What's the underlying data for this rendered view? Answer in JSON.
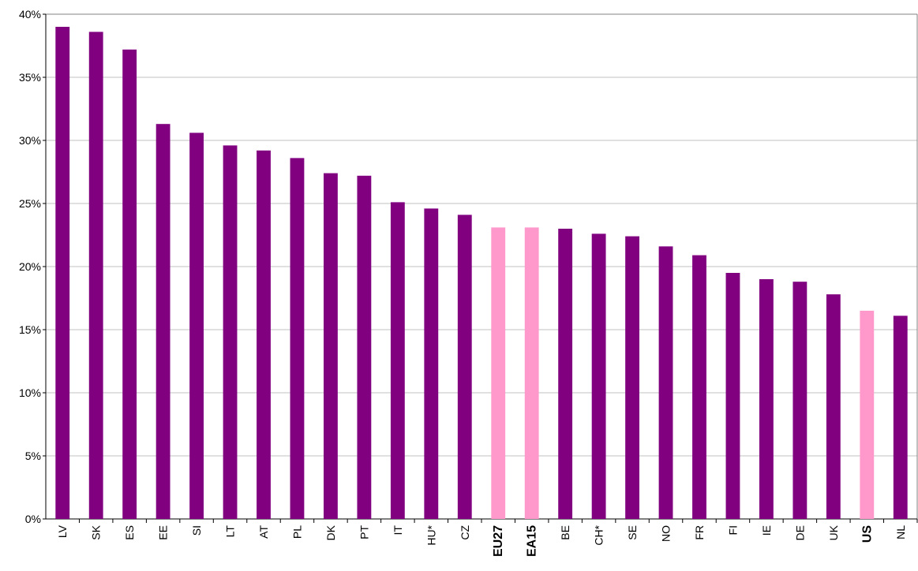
{
  "chart_data": {
    "type": "bar",
    "categories": [
      "LV",
      "SK",
      "ES",
      "EE",
      "SI",
      "LT",
      "AT",
      "PL",
      "DK",
      "PT",
      "IT",
      "HU*",
      "CZ",
      "EU27",
      "EA15",
      "BE",
      "CH*",
      "SE",
      "NO",
      "FR",
      "FI",
      "IE",
      "DE",
      "UK",
      "US",
      "NL"
    ],
    "values": [
      39.0,
      38.6,
      37.2,
      31.3,
      30.6,
      29.6,
      29.2,
      28.6,
      27.4,
      27.2,
      25.1,
      24.6,
      24.1,
      23.1,
      23.1,
      23.0,
      22.6,
      22.4,
      21.6,
      20.9,
      19.5,
      19.0,
      18.8,
      17.8,
      16.5,
      16.1
    ],
    "colors": [
      "#800080",
      "#800080",
      "#800080",
      "#800080",
      "#800080",
      "#800080",
      "#800080",
      "#800080",
      "#800080",
      "#800080",
      "#800080",
      "#800080",
      "#800080",
      "#ff99cc",
      "#ff99cc",
      "#800080",
      "#800080",
      "#800080",
      "#800080",
      "#800080",
      "#800080",
      "#800080",
      "#800080",
      "#800080",
      "#ff99cc",
      "#800080"
    ],
    "ylim": [
      0,
      40
    ],
    "yticks": [
      {
        "value": 0,
        "label": "0%"
      },
      {
        "value": 5,
        "label": "5%"
      },
      {
        "value": 10,
        "label": "10%"
      },
      {
        "value": 15,
        "label": "15%"
      },
      {
        "value": 20,
        "label": "20%"
      },
      {
        "value": 25,
        "label": "25%"
      },
      {
        "value": 30,
        "label": "30%"
      },
      {
        "value": 35,
        "label": "35%"
      },
      {
        "value": 40,
        "label": "40%"
      }
    ],
    "grid": true
  }
}
